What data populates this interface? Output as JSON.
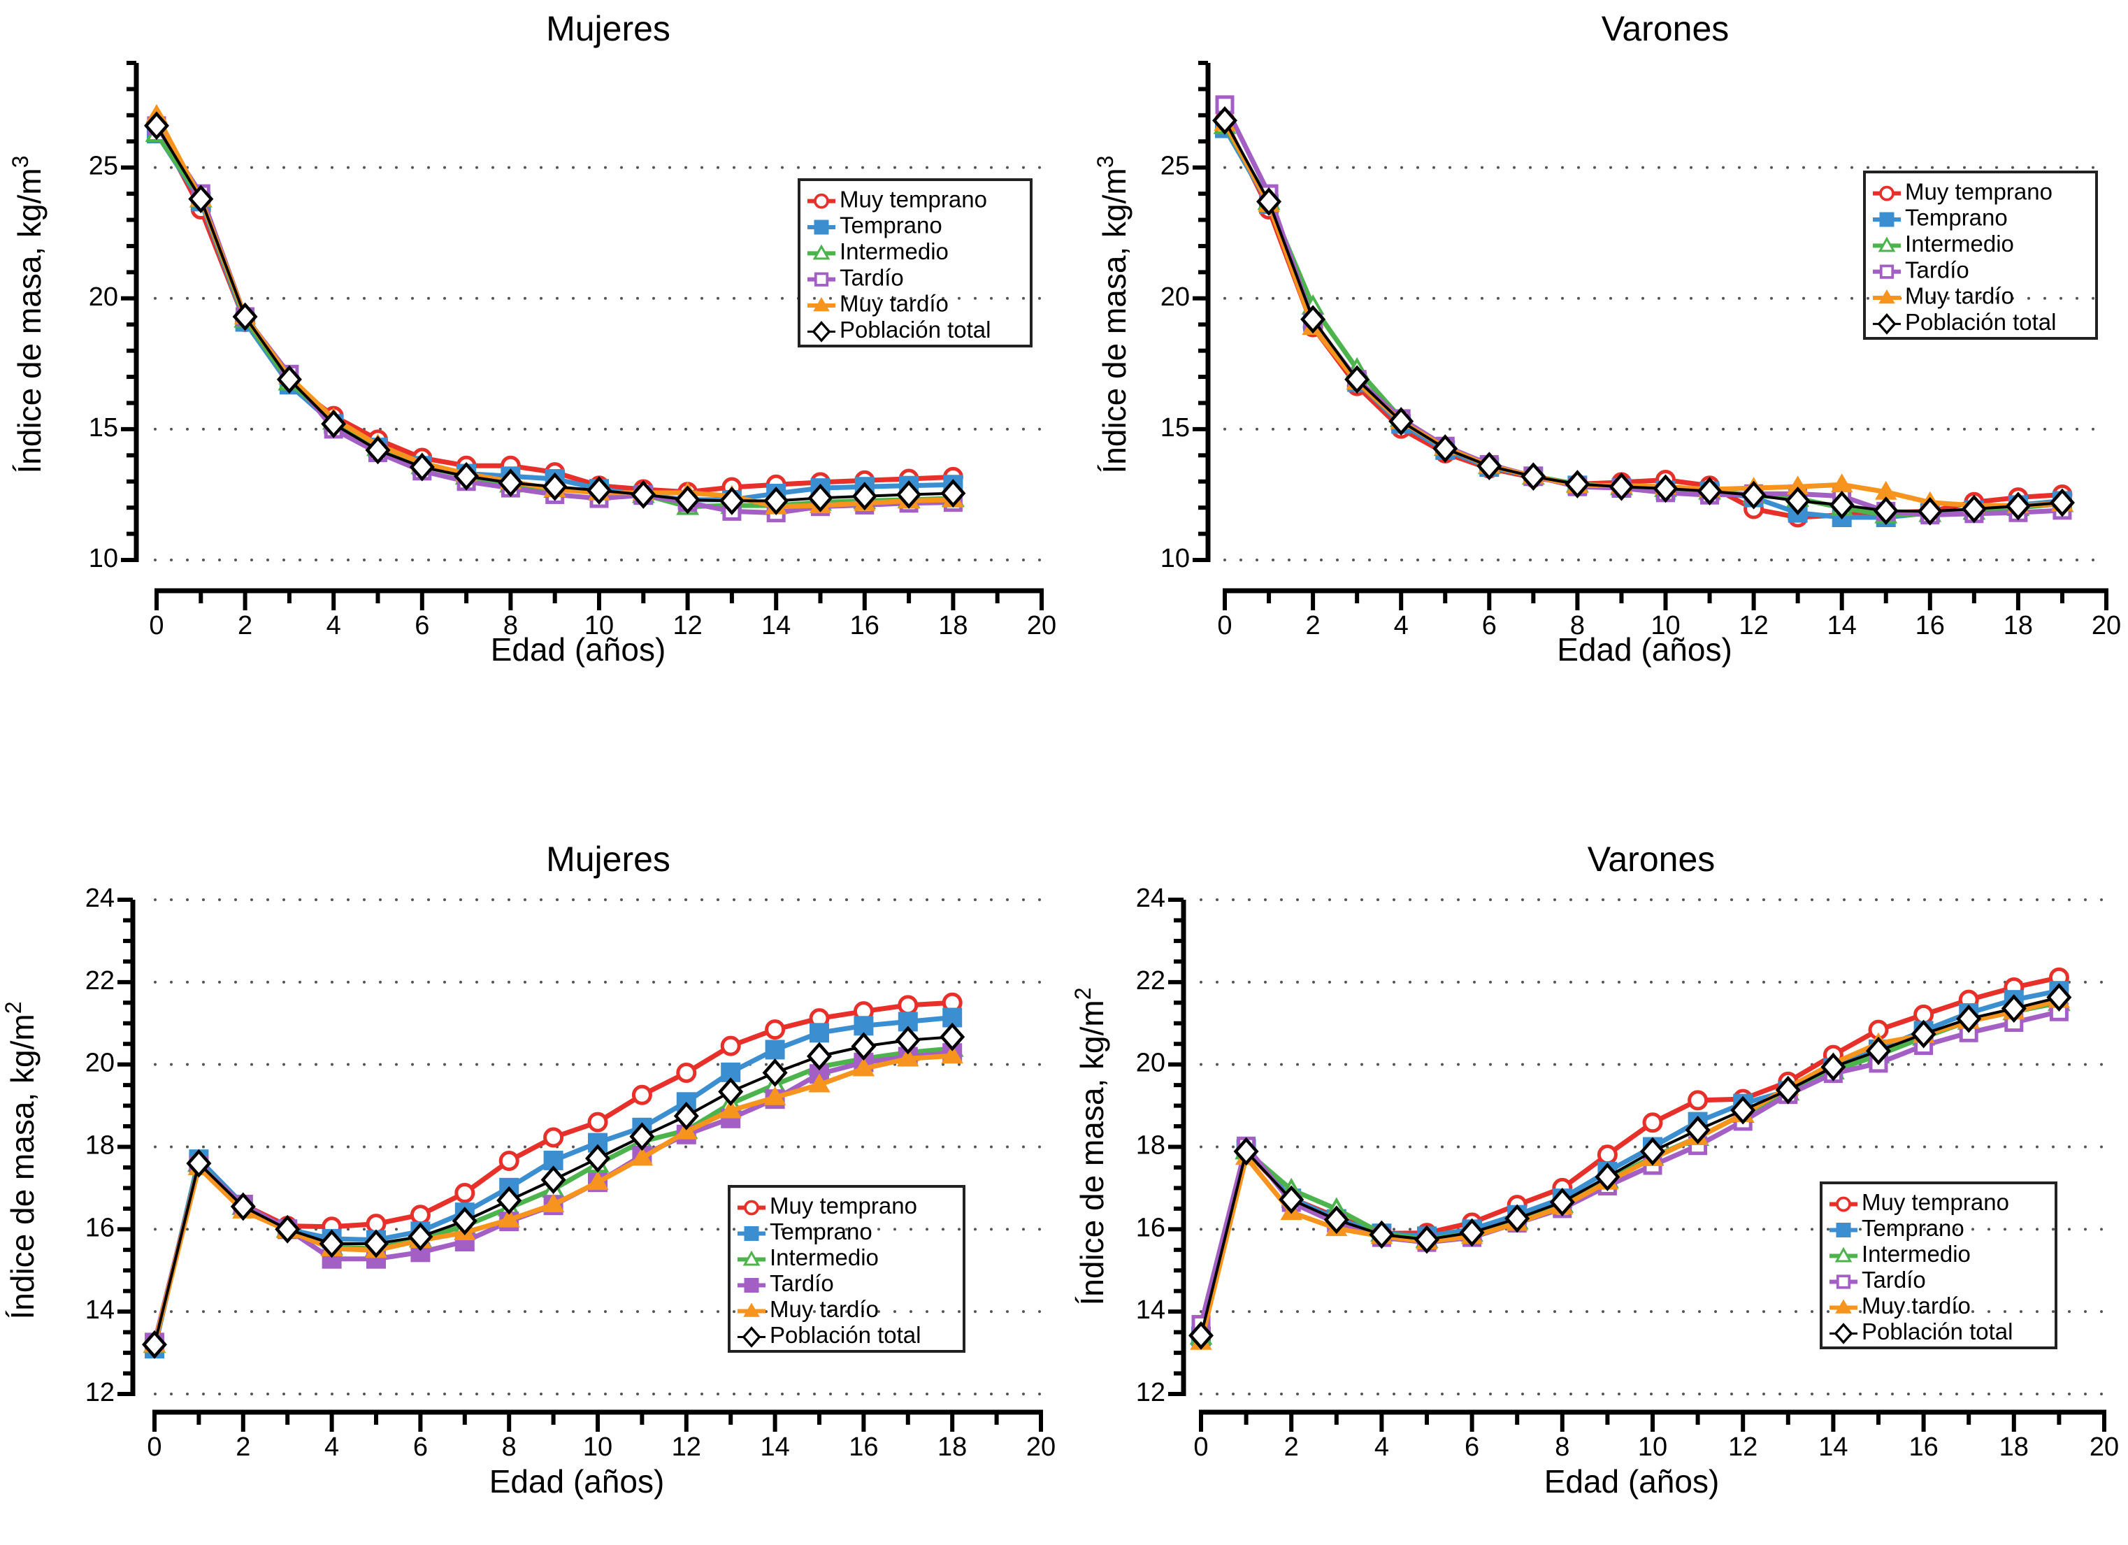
{
  "chart_data": [
    {
      "type": "line",
      "panel": "top-left",
      "title": "Mujeres",
      "xlabel": "Edad (años)",
      "ylabel": "Índice de masa, kg/m",
      "ylabel_superscript": "3",
      "xlim": [
        0,
        20
      ],
      "ylim": [
        10,
        29
      ],
      "xticks": [
        0,
        2,
        4,
        6,
        8,
        10,
        12,
        14,
        16,
        18,
        20
      ],
      "yticks": [
        10,
        15,
        20,
        25
      ],
      "grid": true,
      "legend_position": "upper-right",
      "x": [
        0,
        1,
        2,
        3,
        4,
        5,
        6,
        7,
        8,
        9,
        10,
        11,
        12,
        13,
        14,
        15,
        16,
        17,
        18
      ],
      "series": [
        {
          "name": "Muy temprano",
          "color": "#e8302a",
          "marker": "circle-open",
          "values": [
            26.6,
            23.4,
            19.1,
            16.8,
            15.5,
            14.6,
            13.9,
            13.6,
            13.6,
            13.35,
            12.84,
            12.7,
            12.6,
            12.78,
            12.88,
            12.97,
            13.04,
            13.1,
            13.17
          ]
        },
        {
          "name": "Temprano",
          "color": "#3b8ed0",
          "marker": "square-filled",
          "values": [
            26.3,
            23.7,
            19.1,
            16.7,
            15.2,
            14.3,
            13.6,
            13.3,
            13.2,
            13.1,
            12.72,
            12.48,
            12.3,
            12.3,
            12.54,
            12.75,
            12.8,
            12.84,
            12.88
          ]
        },
        {
          "name": "Intermedio",
          "color": "#4db34d",
          "marker": "triangle-open",
          "values": [
            26.3,
            23.8,
            19.2,
            16.8,
            15.3,
            14.3,
            13.6,
            13.2,
            12.9,
            12.7,
            12.6,
            12.5,
            12.04,
            12.08,
            12.08,
            12.2,
            12.26,
            12.3,
            12.35
          ]
        },
        {
          "name": "Tardío",
          "color": "#a35fc4",
          "marker": "square-open",
          "values": [
            26.6,
            24.0,
            19.3,
            17.1,
            15.0,
            14.1,
            13.4,
            13.0,
            12.75,
            12.5,
            12.35,
            12.48,
            12.2,
            11.86,
            11.8,
            12.04,
            12.1,
            12.17,
            12.2
          ]
        },
        {
          "name": "Muy tardío",
          "color": "#f7941d",
          "marker": "triangle-filled",
          "values": [
            27.0,
            23.8,
            19.3,
            17.0,
            15.4,
            14.4,
            13.7,
            13.3,
            13.0,
            12.7,
            12.57,
            12.57,
            12.57,
            12.44,
            12.04,
            12.08,
            12.17,
            12.26,
            12.3
          ]
        },
        {
          "name": "Población total",
          "color": "#000000",
          "marker": "diamond-open",
          "values": [
            26.6,
            23.8,
            19.3,
            16.9,
            15.2,
            14.2,
            13.55,
            13.2,
            12.95,
            12.8,
            12.66,
            12.5,
            12.3,
            12.26,
            12.26,
            12.37,
            12.44,
            12.5,
            12.55
          ]
        }
      ]
    },
    {
      "type": "line",
      "panel": "top-right",
      "title": "Varones",
      "xlabel": "Edad (años)",
      "ylabel": "Índice de masa, kg/m",
      "ylabel_superscript": "3",
      "xlim": [
        0,
        20
      ],
      "ylim": [
        10,
        29
      ],
      "xticks": [
        0,
        2,
        4,
        6,
        8,
        10,
        12,
        14,
        16,
        18,
        20
      ],
      "yticks": [
        10,
        15,
        20,
        25
      ],
      "grid": true,
      "legend_position": "upper-right",
      "x": [
        0,
        1,
        2,
        3,
        4,
        5,
        6,
        7,
        8,
        9,
        10,
        11,
        12,
        13,
        14,
        15,
        16,
        17,
        18,
        19
      ],
      "series": [
        {
          "name": "Muy temprano",
          "color": "#e8302a",
          "marker": "circle-open",
          "values": [
            26.8,
            23.4,
            18.9,
            16.65,
            15.02,
            14.08,
            13.5,
            13.15,
            12.9,
            12.97,
            13.06,
            12.84,
            11.95,
            11.63,
            11.72,
            11.81,
            11.86,
            12.21,
            12.39,
            12.5
          ]
        },
        {
          "name": "Temprano",
          "color": "#3b8ed0",
          "marker": "square-filled",
          "values": [
            26.5,
            23.6,
            19.1,
            16.8,
            15.2,
            14.2,
            13.55,
            13.2,
            12.85,
            12.75,
            12.66,
            12.63,
            12.39,
            11.8,
            11.63,
            11.63,
            11.8,
            11.9,
            12.1,
            12.26
          ]
        },
        {
          "name": "Intermedio",
          "color": "#4db34d",
          "marker": "triangle-open",
          "values": [
            26.6,
            23.7,
            19.7,
            17.3,
            15.4,
            14.3,
            13.6,
            13.2,
            12.9,
            12.8,
            12.73,
            12.63,
            12.48,
            12.35,
            12.0,
            11.72,
            11.77,
            11.86,
            12.0,
            12.15
          ]
        },
        {
          "name": "Tardío",
          "color": "#a35fc4",
          "marker": "square-open",
          "values": [
            27.4,
            24.0,
            19.1,
            16.9,
            15.4,
            14.35,
            13.65,
            13.2,
            12.8,
            12.75,
            12.57,
            12.48,
            12.53,
            12.53,
            12.44,
            11.86,
            11.72,
            11.77,
            11.81,
            11.9
          ]
        },
        {
          "name": "Muy tardío",
          "color": "#f7941d",
          "marker": "triangle-filled",
          "values": [
            26.7,
            23.6,
            18.9,
            16.8,
            15.3,
            14.3,
            13.6,
            13.2,
            12.85,
            12.85,
            12.8,
            12.7,
            12.75,
            12.8,
            12.88,
            12.6,
            12.2,
            12.08,
            12.08,
            12.15
          ]
        },
        {
          "name": "Población total",
          "color": "#000000",
          "marker": "diamond-open",
          "values": [
            26.8,
            23.7,
            19.2,
            16.9,
            15.3,
            14.26,
            13.59,
            13.19,
            12.9,
            12.8,
            12.73,
            12.63,
            12.48,
            12.26,
            12.1,
            11.88,
            11.86,
            11.95,
            12.06,
            12.19
          ]
        }
      ]
    },
    {
      "type": "line",
      "panel": "bottom-left",
      "title": "Mujeres",
      "xlabel": "Edad (años)",
      "ylabel": "Índice de masa, kg/m",
      "ylabel_superscript": "2",
      "xlim": [
        0,
        20
      ],
      "ylim": [
        12,
        24
      ],
      "xticks": [
        0,
        2,
        4,
        6,
        8,
        10,
        12,
        14,
        16,
        18,
        20
      ],
      "yticks": [
        12,
        14,
        16,
        18,
        20,
        22,
        24
      ],
      "grid": true,
      "legend_position": "lower-right",
      "x": [
        0,
        1,
        2,
        3,
        4,
        5,
        6,
        7,
        8,
        9,
        10,
        11,
        12,
        13,
        14,
        15,
        16,
        17,
        18
      ],
      "series": [
        {
          "name": "Muy temprano",
          "color": "#e8302a",
          "marker": "circle-open",
          "values": [
            13.2,
            17.6,
            16.6,
            16.08,
            16.06,
            16.13,
            16.35,
            16.88,
            17.66,
            18.23,
            18.6,
            19.26,
            19.8,
            20.45,
            20.85,
            21.12,
            21.29,
            21.44,
            21.5
          ]
        },
        {
          "name": "Temprano",
          "color": "#3b8ed0",
          "marker": "square-filled",
          "values": [
            13.1,
            17.7,
            16.6,
            16.0,
            15.77,
            15.74,
            15.95,
            16.41,
            17.01,
            17.67,
            18.1,
            18.47,
            19.09,
            19.81,
            20.36,
            20.77,
            20.94,
            21.04,
            21.14
          ]
        },
        {
          "name": "Intermedio",
          "color": "#4db34d",
          "marker": "triangle-open",
          "values": [
            13.2,
            17.6,
            16.55,
            16.0,
            15.57,
            15.53,
            15.77,
            16.08,
            16.52,
            16.97,
            17.58,
            18.13,
            18.4,
            19.05,
            19.51,
            19.94,
            20.14,
            20.29,
            20.39
          ]
        },
        {
          "name": "Tardío",
          "color": "#a35fc4",
          "marker": "square-filled",
          "values": [
            13.25,
            17.55,
            16.6,
            16.0,
            15.28,
            15.28,
            15.44,
            15.7,
            16.19,
            16.58,
            17.14,
            17.79,
            18.3,
            18.69,
            19.16,
            19.77,
            20.05,
            20.19,
            20.28
          ]
        },
        {
          "name": "Muy tardío",
          "color": "#f7941d",
          "marker": "triangle-filled",
          "values": [
            13.2,
            17.5,
            16.45,
            15.97,
            15.53,
            15.49,
            15.73,
            15.92,
            16.23,
            16.6,
            17.14,
            17.73,
            18.37,
            18.88,
            19.2,
            19.51,
            19.9,
            20.14,
            20.21
          ]
        },
        {
          "name": "Población total",
          "color": "#000000",
          "marker": "diamond-open",
          "values": [
            13.2,
            17.6,
            16.55,
            16.0,
            15.65,
            15.65,
            15.82,
            16.2,
            16.7,
            17.2,
            17.72,
            18.25,
            18.75,
            19.34,
            19.8,
            20.2,
            20.44,
            20.59,
            20.67
          ]
        }
      ]
    },
    {
      "type": "line",
      "panel": "bottom-right",
      "title": "Varones",
      "xlabel": "Edad (años)",
      "ylabel": "Índice de masa, kg/m",
      "ylabel_superscript": "2",
      "xlim": [
        0,
        20
      ],
      "ylim": [
        12,
        24
      ],
      "xticks": [
        0,
        2,
        4,
        6,
        8,
        10,
        12,
        14,
        16,
        18,
        20
      ],
      "yticks": [
        12,
        14,
        16,
        18,
        20,
        22,
        24
      ],
      "grid": true,
      "legend_position": "lower-right",
      "x": [
        0,
        1,
        2,
        3,
        4,
        5,
        6,
        7,
        8,
        9,
        10,
        11,
        12,
        13,
        14,
        15,
        16,
        17,
        18,
        19
      ],
      "series": [
        {
          "name": "Muy temprano",
          "color": "#e8302a",
          "marker": "circle-open",
          "values": [
            13.4,
            17.9,
            16.75,
            16.3,
            15.9,
            15.91,
            16.16,
            16.59,
            17.0,
            17.81,
            18.59,
            19.13,
            19.16,
            19.58,
            20.23,
            20.84,
            21.21,
            21.57,
            21.87,
            22.11
          ]
        },
        {
          "name": "Temprano",
          "color": "#3b8ed0",
          "marker": "square-filled",
          "values": [
            13.4,
            17.95,
            16.75,
            16.25,
            15.9,
            15.83,
            16.0,
            16.35,
            16.75,
            17.4,
            18.0,
            18.61,
            19.05,
            19.36,
            19.92,
            20.37,
            20.82,
            21.25,
            21.57,
            21.79
          ]
        },
        {
          "name": "Intermedio",
          "color": "#4db34d",
          "marker": "triangle-open",
          "values": [
            13.4,
            17.9,
            16.96,
            16.49,
            15.9,
            15.75,
            15.9,
            16.2,
            16.6,
            17.2,
            17.75,
            18.23,
            18.79,
            19.33,
            19.84,
            20.23,
            20.66,
            21.05,
            21.28,
            21.5
          ]
        },
        {
          "name": "Tardío",
          "color": "#a35fc4",
          "marker": "square-open",
          "values": [
            13.69,
            18.02,
            16.65,
            16.15,
            15.8,
            15.68,
            15.8,
            16.15,
            16.5,
            17.05,
            17.55,
            18.03,
            18.62,
            19.27,
            19.78,
            20.03,
            20.46,
            20.77,
            21.02,
            21.28
          ]
        },
        {
          "name": "Muy tardío",
          "color": "#f7941d",
          "marker": "triangle-filled",
          "values": [
            13.26,
            17.75,
            16.41,
            16.02,
            15.83,
            15.7,
            15.83,
            16.15,
            16.55,
            17.15,
            17.72,
            18.23,
            18.79,
            19.44,
            20.03,
            20.51,
            20.71,
            21.05,
            21.28,
            21.56
          ]
        },
        {
          "name": "Población total",
          "color": "#000000",
          "marker": "diamond-open",
          "values": [
            13.42,
            17.89,
            16.72,
            16.23,
            15.87,
            15.75,
            15.92,
            16.26,
            16.66,
            17.27,
            17.89,
            18.41,
            18.89,
            19.38,
            19.94,
            20.33,
            20.74,
            21.11,
            21.36,
            21.63
          ]
        }
      ]
    }
  ]
}
